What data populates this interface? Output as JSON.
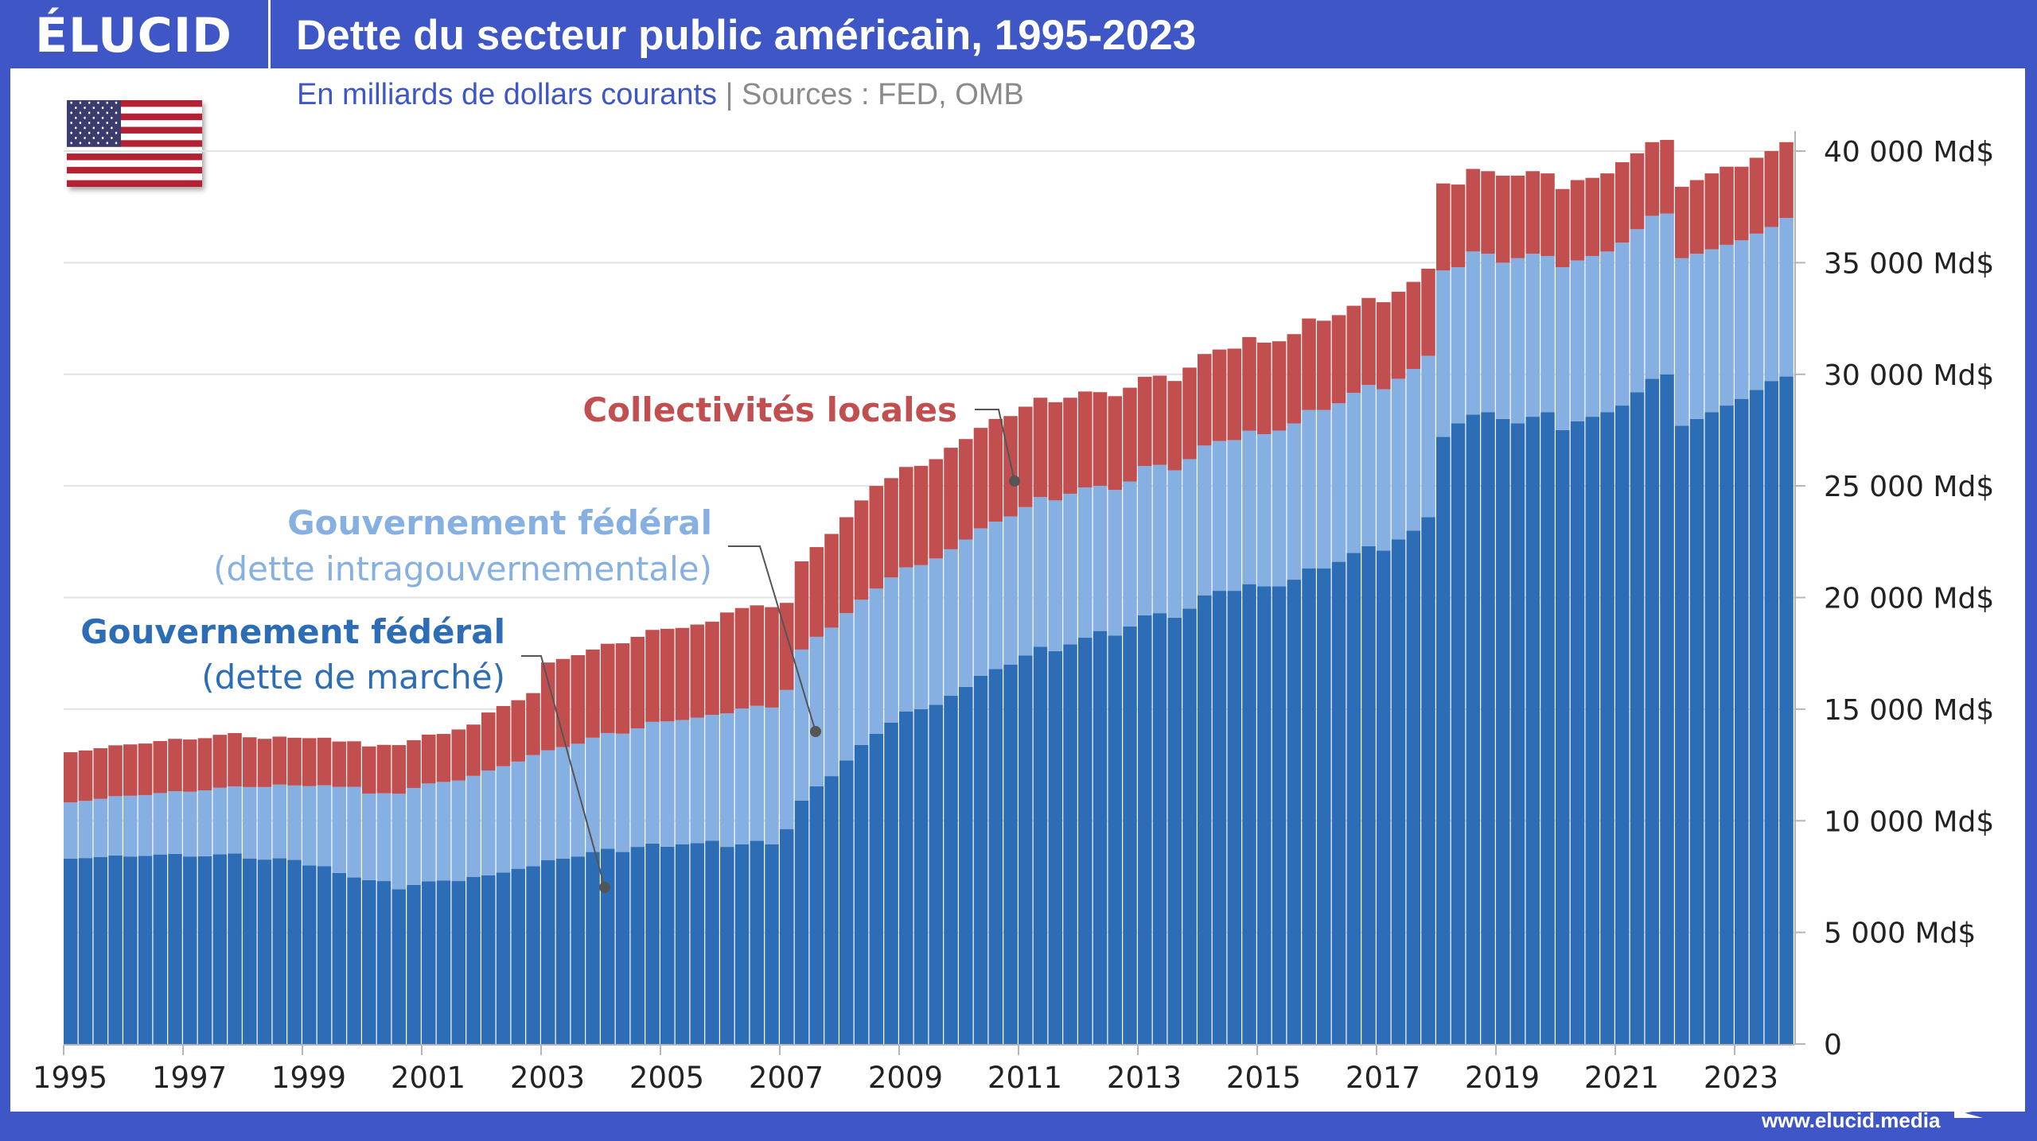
{
  "header": {
    "logo": "ÉLUCID",
    "title": "Dette du secteur public américain, 1995-2023"
  },
  "subtitle": {
    "units": "En milliards de dollars courants",
    "separator": "|",
    "sources": "Sources : FED, OMB"
  },
  "flag_icon": "us-flag-icon",
  "footer": {
    "url": "www.elucid.media"
  },
  "colors": {
    "frame": "#3f57c6",
    "market": "#2d6db5",
    "intragov": "#86b0e2",
    "local": "#c24f4f",
    "annotation_market": "#2d6db5",
    "annotation_intragov": "#86b0e2",
    "annotation_local": "#c24f4f"
  },
  "chart_data": {
    "type": "bar",
    "stacked": true,
    "frequency": "quarterly",
    "title": "Dette du secteur public américain, 1995-2023",
    "subtitle": "En milliards de dollars courants",
    "xlabel": "",
    "ylabel": "",
    "ylim": [
      0,
      40000
    ],
    "y_ticks": [
      0,
      5000,
      10000,
      15000,
      20000,
      25000,
      30000,
      35000,
      40000
    ],
    "y_tick_labels": [
      "0",
      "5 000 Md$",
      "10 000 Md$",
      "15 000 Md$",
      "20 000 Md$",
      "25 000 Md$",
      "30 000 Md$",
      "35 000 Md$",
      "40 000 Md$"
    ],
    "x_tick_labels": [
      "1995",
      "1997",
      "1999",
      "2001",
      "2003",
      "2005",
      "2007",
      "2009",
      "2011",
      "2013",
      "2015",
      "2017",
      "2019",
      "2021",
      "2023"
    ],
    "x_start_year": 1995,
    "grid": true,
    "legend": "inline-annotations",
    "annotations": [
      {
        "series": "local",
        "line1": "Collectivités locales",
        "line2": ""
      },
      {
        "series": "intragov",
        "line1": "Gouvernement fédéral",
        "line2": "(dette intragouvernementale)"
      },
      {
        "series": "market",
        "line1": "Gouvernement fédéral",
        "line2": "(dette de marché)"
      }
    ],
    "series": [
      {
        "name": "Gouvernement fédéral (dette de marché)",
        "key": "market",
        "values": [
          8300,
          8330,
          8380,
          8450,
          8400,
          8430,
          8490,
          8520,
          8400,
          8410,
          8500,
          8530,
          8310,
          8260,
          8320,
          8250,
          8000,
          7970,
          7660,
          7460,
          7340,
          7300,
          6930,
          7130,
          7290,
          7320,
          7300,
          7480,
          7560,
          7680,
          7850,
          7960,
          8240,
          8300,
          8400,
          8600,
          8750,
          8600,
          8830,
          8980,
          8840,
          8950,
          9000,
          9110,
          8830,
          8950,
          9100,
          8950,
          9630,
          10900,
          11540,
          12000,
          12700,
          13400,
          13900,
          14400,
          14900,
          15000,
          15200,
          15600,
          16000,
          16500,
          16800,
          17000,
          17400,
          17800,
          17600,
          17900,
          18200,
          18500,
          18300,
          18700,
          19200,
          19300,
          19100,
          19500,
          20100,
          20300,
          20300,
          20600,
          20500,
          20500,
          20800,
          21300,
          21300,
          21600,
          22000,
          22300,
          22100,
          22600,
          23000,
          23600,
          27200,
          27800,
          28200,
          28300,
          28000,
          27800,
          28100,
          28300,
          27500,
          27900,
          28100,
          28300,
          28600,
          29200,
          29800,
          30000,
          27700,
          28000,
          28300,
          28600,
          28900,
          29300,
          29700,
          29900
        ]
      },
      {
        "name": "Gouvernement fédéral (dette intragouvernementale)",
        "key": "intragov",
        "values": [
          2520,
          2560,
          2600,
          2650,
          2720,
          2720,
          2750,
          2800,
          2900,
          2950,
          2980,
          3010,
          3200,
          3250,
          3300,
          3330,
          3550,
          3620,
          3860,
          4060,
          3880,
          3930,
          4280,
          4340,
          4380,
          4420,
          4500,
          4530,
          4690,
          4760,
          4800,
          4980,
          4920,
          5000,
          5050,
          5120,
          5180,
          5300,
          5310,
          5450,
          5610,
          5560,
          5620,
          5630,
          5980,
          6080,
          6050,
          6120,
          6230,
          6770,
          6700,
          6650,
          6600,
          6500,
          6500,
          6500,
          6450,
          6450,
          6550,
          6560,
          6600,
          6600,
          6600,
          6630,
          6650,
          6700,
          6750,
          6750,
          6730,
          6500,
          6520,
          6500,
          6690,
          6640,
          6600,
          6700,
          6710,
          6710,
          6750,
          6870,
          6820,
          6980,
          7000,
          7100,
          7100,
          7100,
          7170,
          7220,
          7230,
          7200,
          7240,
          7230,
          7450,
          7000,
          7300,
          7100,
          7000,
          7400,
          7300,
          7000,
          7300,
          7200,
          7200,
          7200,
          7300,
          7300,
          7300,
          7200,
          7500,
          7400,
          7300,
          7200,
          7100,
          7000,
          6900,
          7100
        ]
      },
      {
        "name": "Collectivités locales",
        "key": "local",
        "values": [
          2250,
          2260,
          2270,
          2280,
          2300,
          2310,
          2330,
          2350,
          2340,
          2340,
          2370,
          2390,
          2230,
          2160,
          2150,
          2140,
          2150,
          2130,
          2030,
          2040,
          2110,
          2170,
          2180,
          2140,
          2190,
          2150,
          2290,
          2300,
          2600,
          2700,
          2750,
          2780,
          3930,
          3950,
          3970,
          3950,
          4000,
          4050,
          4100,
          4120,
          4150,
          4130,
          4170,
          4180,
          4520,
          4500,
          4500,
          4500,
          3900,
          3950,
          4020,
          4200,
          4300,
          4450,
          4600,
          4450,
          4500,
          4450,
          4450,
          4550,
          4500,
          4500,
          4600,
          4500,
          4500,
          4450,
          4400,
          4300,
          4300,
          4200,
          4200,
          4200,
          4000,
          4000,
          4000,
          4100,
          4100,
          4100,
          4100,
          4200,
          4100,
          4000,
          4000,
          4100,
          4000,
          3950,
          3900,
          3900,
          3900,
          3900,
          3900,
          3900,
          3900,
          3700,
          3700,
          3700,
          3900,
          3700,
          3700,
          3700,
          3500,
          3600,
          3500,
          3500,
          3600,
          3400,
          3300,
          3300,
          3200,
          3300,
          3400,
          3500,
          3300,
          3400,
          3400,
          3400
        ]
      }
    ]
  }
}
